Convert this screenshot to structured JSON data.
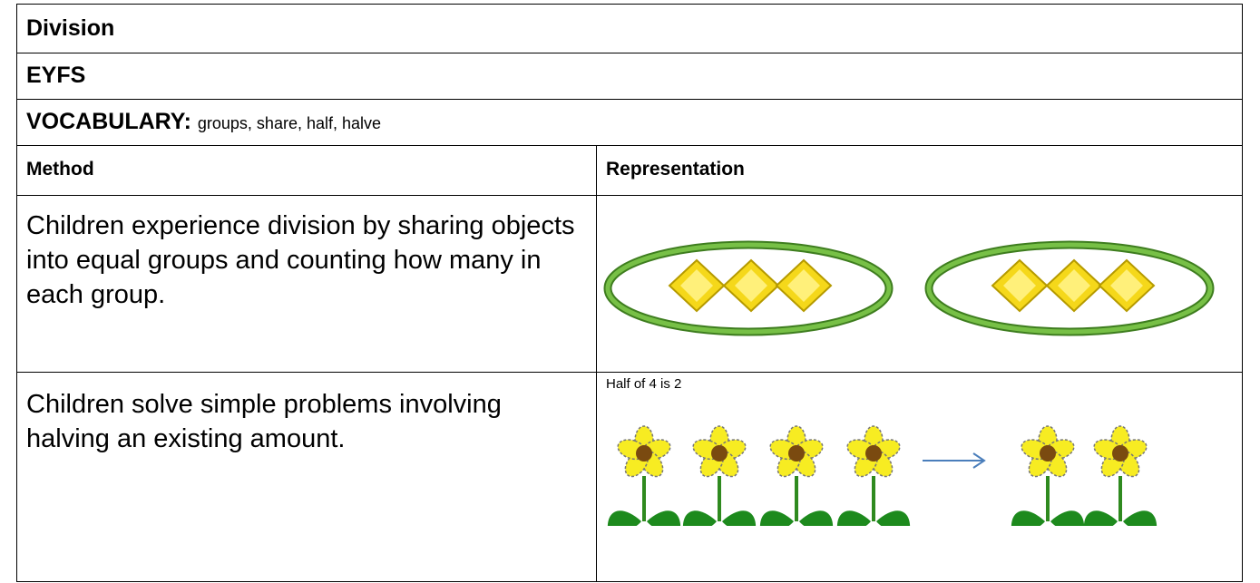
{
  "header": {
    "title": "Division",
    "stage": "EYFS"
  },
  "vocabulary": {
    "label": "VOCABULARY:",
    "text": "groups, share, half, halve"
  },
  "table": {
    "columns": [
      "Method",
      "Representation"
    ],
    "rows": [
      {
        "method": "Children experience division by sharing objects into equal groups and counting how many in each group."
      },
      {
        "method": "Children solve simple problems involving halving an existing amount.",
        "caption": "Half of 4 is 2"
      }
    ]
  }
}
